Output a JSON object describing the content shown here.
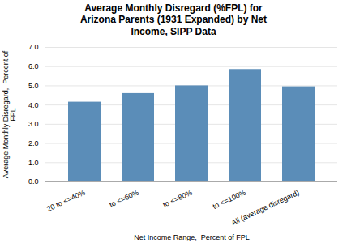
{
  "chart_data": {
    "type": "bar",
    "title": "Average Monthly Disregard (%FPL) for\nArizona Parents (1931 Expanded) by Net\nIncome, SIPP Data",
    "categories": [
      "20 to <=40%",
      "to <=60%",
      "to <=80%",
      "to <=100%",
      "All (average disregard)"
    ],
    "values": [
      4.15,
      4.6,
      5.0,
      5.85,
      4.95
    ],
    "color": "#5B8DB8",
    "xlabel": "Net Income Range,  Percent of FPL",
    "ylabel": "Average Monthly Disregard,  Percent of\nFPL",
    "ylim": [
      0,
      7
    ],
    "yticks": [
      0,
      1,
      2,
      3,
      4,
      5,
      6,
      7
    ],
    "grid": true
  }
}
